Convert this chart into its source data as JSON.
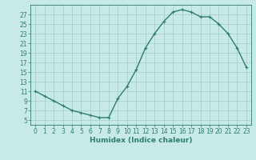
{
  "x": [
    0,
    1,
    2,
    3,
    4,
    5,
    6,
    7,
    8,
    9,
    10,
    11,
    12,
    13,
    14,
    15,
    16,
    17,
    18,
    19,
    20,
    21,
    22,
    23
  ],
  "y": [
    11,
    10,
    9,
    8,
    7,
    6.5,
    6,
    5.5,
    5.5,
    9.5,
    12,
    15.5,
    20,
    23,
    25.5,
    27.5,
    28,
    27.5,
    26.5,
    26.5,
    25,
    23,
    20,
    16
  ],
  "line_color": "#2e7d6e",
  "marker": "+",
  "marker_size": 3,
  "bg_color": "#c8eae6",
  "grid_color": "#a0ccc8",
  "xlabel": "Humidex (Indice chaleur)",
  "xlim": [
    -0.5,
    23.5
  ],
  "ylim": [
    4,
    29
  ],
  "yticks": [
    5,
    7,
    9,
    11,
    13,
    15,
    17,
    19,
    21,
    23,
    25,
    27
  ],
  "xticks": [
    0,
    1,
    2,
    3,
    4,
    5,
    6,
    7,
    8,
    9,
    10,
    11,
    12,
    13,
    14,
    15,
    16,
    17,
    18,
    19,
    20,
    21,
    22,
    23
  ],
  "xlabel_fontsize": 6.5,
  "tick_fontsize": 5.5,
  "linewidth": 1.0,
  "spine_color": "#2e7d6e",
  "marker_edge_width": 0.8
}
